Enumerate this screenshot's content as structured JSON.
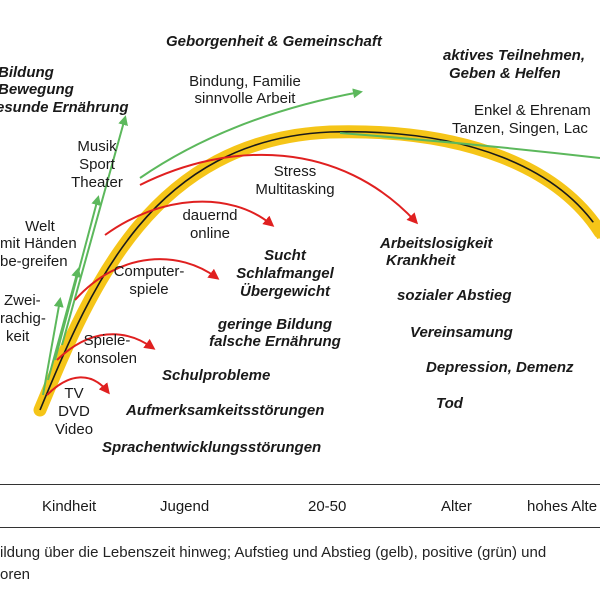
{
  "colors": {
    "curve": "#1a1a1a",
    "highlight": "#f5c518",
    "positive": "#5cb85c",
    "negative": "#e02020"
  },
  "labels": {
    "top_left": [
      "Bildung",
      "Bewegung",
      "esunde Ernährung"
    ],
    "top_center": "Geborgenheit & Gemeinschaft",
    "top_right": [
      "aktives Teilnehmen,",
      "Geben & Helfen"
    ],
    "bindung": [
      "Bindung, Familie",
      "sinnvolle Arbeit"
    ],
    "enkel": [
      "Enkel & Ehrenam",
      "Tanzen, Singen, Lac"
    ],
    "musik": [
      "Musik",
      "Sport",
      "Theater"
    ],
    "welt": [
      "Welt",
      "mit Händen",
      "be-greifen"
    ],
    "zwei": [
      "Zwei-",
      "rachig-",
      "keit"
    ],
    "stress": [
      "Stress",
      "Multitasking"
    ],
    "dauernd": [
      "dauernd",
      "online"
    ],
    "computer": [
      "Computer-",
      "spiele"
    ],
    "spiele": [
      "Spiele-",
      "konsolen"
    ],
    "tv": [
      "TV",
      "DVD",
      "Video"
    ],
    "sucht": [
      "Sucht",
      "Schlafmangel",
      "Übergewicht"
    ],
    "geringe": [
      "geringe Bildung",
      "falsche Ernährung"
    ],
    "schulprobleme": "Schulprobleme",
    "aufmerksamkeit": "Aufmerksamkeitsstörungen",
    "sprach": "Sprachentwicklungsstörungen",
    "arbeitslos": [
      "Arbeitslosigkeit",
      "Krankheit"
    ],
    "abstieg": "sozialer Abstieg",
    "vereinsamung": "Vereinsamung",
    "depression": "Depression, Demenz",
    "tod": "Tod"
  },
  "axis_ticks": [
    "Kindheit",
    "Jugend",
    "20-50",
    "Alter",
    "hohes Alte"
  ],
  "caption": [
    "ildung über die Lebenszeit hinweg; Aufstieg und Abstieg (gelb), positive (grün) und",
    "oren"
  ]
}
